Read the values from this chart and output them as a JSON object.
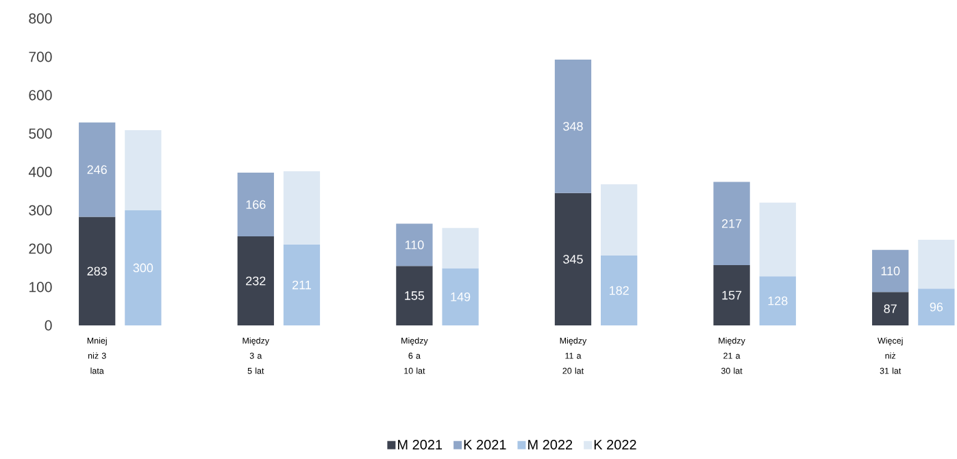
{
  "chart_data": {
    "type": "bar",
    "stacked": true,
    "categories": [
      "Mniej niż 3 lata",
      null,
      "Między 3 a 5 lat",
      null,
      "Między 6 a 10 lat",
      null,
      "Między 11 a 20 lat",
      null,
      "Między 21 a 30 lat",
      null,
      "Więcej niż 31 lat",
      null
    ],
    "series": [
      {
        "name": "M 2021",
        "color": "#3d4350",
        "values": [
          283,
          null,
          232,
          null,
          155,
          null,
          345,
          null,
          157,
          null,
          87,
          null
        ],
        "value_labels": [
          "283",
          null,
          "232",
          null,
          "155",
          null,
          "345",
          null,
          "157",
          null,
          "87",
          null
        ]
      },
      {
        "name": "K 2021",
        "color": "#8fa6c8",
        "values": [
          246,
          null,
          166,
          null,
          110,
          null,
          348,
          null,
          217,
          null,
          110,
          null
        ],
        "value_labels": [
          "246",
          null,
          "166",
          null,
          "110",
          null,
          "348",
          null,
          "217",
          null,
          "110",
          null
        ]
      },
      {
        "name": "M 2022",
        "color": "#a9c6e6",
        "values": [
          null,
          300,
          null,
          211,
          null,
          149,
          null,
          182,
          null,
          128,
          null,
          96
        ],
        "value_labels": [
          null,
          "300",
          null,
          "211",
          null,
          "149",
          null,
          "182",
          null,
          "128",
          null,
          "96"
        ]
      },
      {
        "name": "K 2022",
        "color": "#dde8f3",
        "values": [
          null,
          209,
          null,
          191,
          null,
          105,
          null,
          186,
          null,
          192,
          null,
          127
        ]
      }
    ],
    "ylim": [
      0,
      800
    ],
    "yticks": [
      0,
      100,
      200,
      300,
      400,
      500,
      600,
      700,
      800
    ],
    "legend": "bottom"
  }
}
